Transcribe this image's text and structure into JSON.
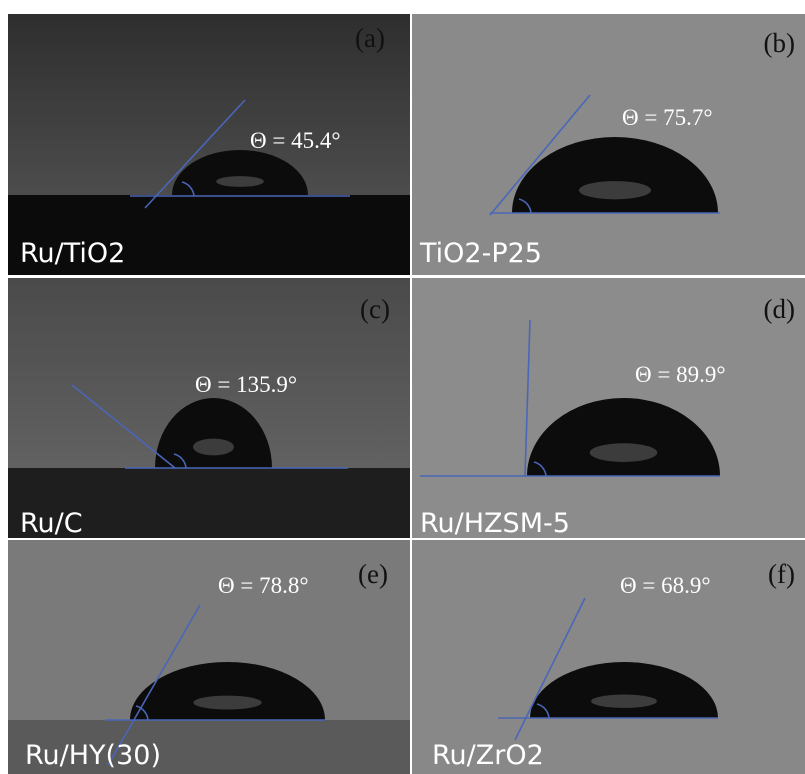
{
  "panels": [
    {
      "tag": "(a)",
      "angle": "Θ = 45.4°",
      "label": "Ru/TiO2"
    },
    {
      "tag": "(b)",
      "angle": "Θ = 75.7°",
      "label": "TiO2-P25"
    },
    {
      "tag": "(c)",
      "angle": "Θ = 135.9°",
      "label": "Ru/C"
    },
    {
      "tag": "(d)",
      "angle": "Θ = 89.9°",
      "label": "Ru/HZSM-5"
    },
    {
      "tag": "(e)",
      "angle": "Θ = 78.8°",
      "label": "Ru/HY(30)"
    },
    {
      "tag": "(f)",
      "angle": "Θ = 68.9°",
      "label": "Ru/ZrO2"
    }
  ]
}
